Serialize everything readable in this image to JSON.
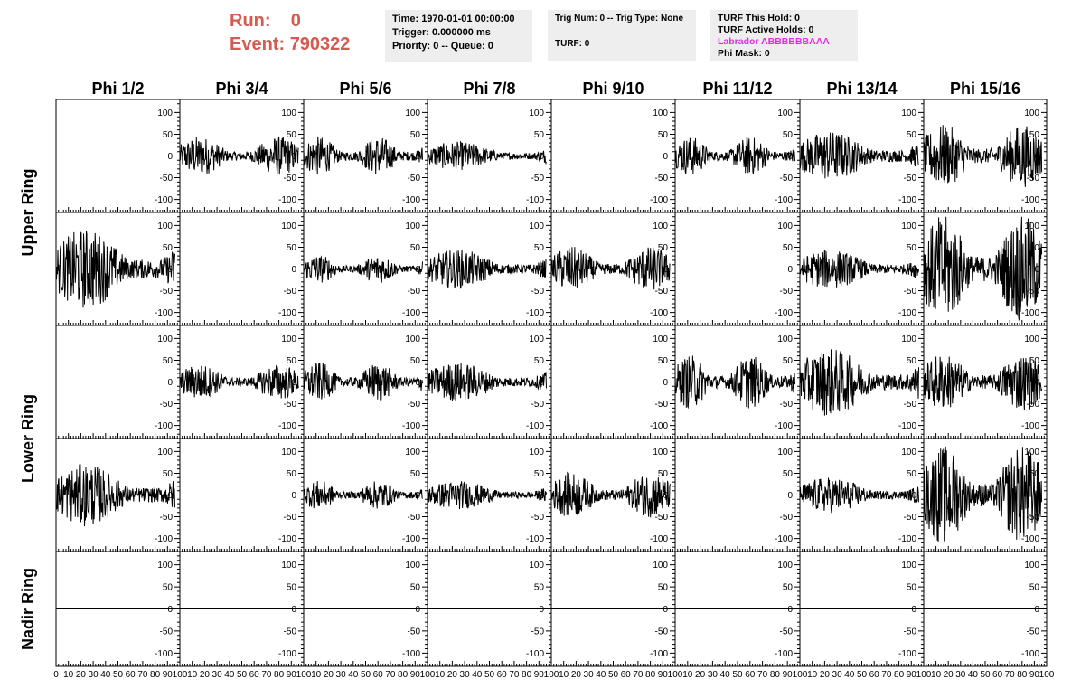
{
  "header": {
    "run_label": "Run:",
    "run_value": "0",
    "event_label": "Event:",
    "event_value": "790322"
  },
  "info_time": {
    "time": "Time: 1970-01-01 00:00:00",
    "trigger": "Trigger: 0.000000 ms",
    "priority": "Priority: 0 -- Queue: 0"
  },
  "info_trig": {
    "trig": "Trig Num: 0 -- Trig Type: None",
    "turf": "TURF: 0"
  },
  "info_turf": {
    "this_hold": "TURF This Hold: 0",
    "active_holds": "TURF Active Holds: 0",
    "labrador": "Labrador ABBBBBBAAA",
    "phi_mask": "Phi Mask: 0"
  },
  "colors": {
    "accent": "#d35b50",
    "labrador": "#e22de2",
    "panel_bg": "#eeeeee",
    "trace": "#000000"
  },
  "chart_data": {
    "type": "line",
    "columns": [
      "Phi 1/2",
      "Phi 3/4",
      "Phi 5/6",
      "Phi 7/8",
      "Phi 9/10",
      "Phi 11/12",
      "Phi 13/14",
      "Phi 15/16"
    ],
    "ring_labels": [
      "Upper Ring",
      "Lower Ring",
      "Nadir Ring"
    ],
    "rows": 5,
    "xlim": [
      0,
      100
    ],
    "ylim": [
      -130,
      130
    ],
    "x_ticks": [
      0,
      10,
      20,
      30,
      40,
      50,
      60,
      70,
      80,
      90,
      100
    ],
    "y_ticks": [
      100,
      50,
      0,
      -50,
      -100
    ],
    "x_points": 260,
    "x_end": 96,
    "amplitude_grid": [
      [
        0,
        22,
        22,
        16,
        0,
        22,
        28,
        35
      ],
      [
        45,
        0,
        16,
        22,
        25,
        0,
        22,
        60
      ],
      [
        0,
        20,
        22,
        22,
        0,
        30,
        38,
        32
      ],
      [
        35,
        0,
        16,
        16,
        25,
        0,
        20,
        55
      ],
      [
        0,
        0,
        0,
        0,
        0,
        0,
        0,
        0
      ]
    ]
  }
}
